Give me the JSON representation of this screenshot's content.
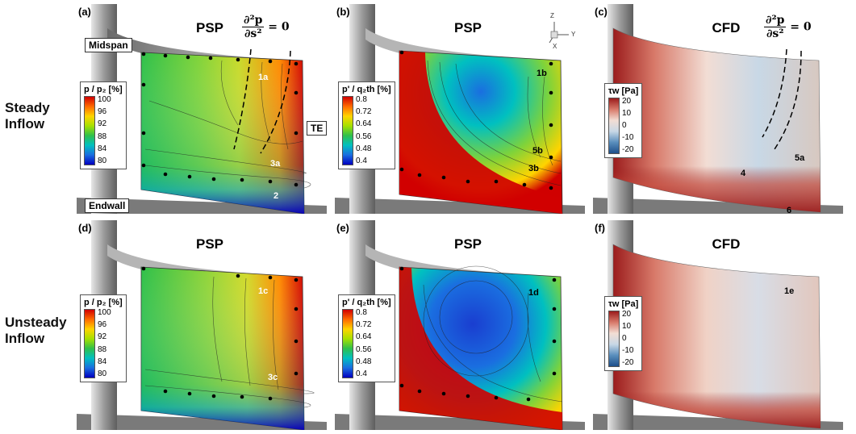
{
  "rows": [
    {
      "label_line1": "Steady",
      "label_line2": "Inflow"
    },
    {
      "label_line1": "Unsteady",
      "label_line2": "Inflow"
    }
  ],
  "panels": {
    "a": {
      "label": "(a)",
      "title": "PSP",
      "tag_midspan": "Midspan",
      "tag_endwall": "Endwall",
      "tag_te": "TE",
      "cbar_title": "p / p₂ [%]",
      "ticks": [
        "100",
        "96",
        "92",
        "88",
        "84",
        "80"
      ],
      "annotations": [
        "1a",
        "3a",
        "2"
      ]
    },
    "b": {
      "label": "(b)",
      "title": "PSP",
      "cbar_title": "p' / q₂th [%]",
      "ticks": [
        "0.8",
        "0.72",
        "0.64",
        "0.56",
        "0.48",
        "0.4"
      ],
      "annotations": [
        "1b",
        "5b",
        "3b"
      ],
      "axes": {
        "z": "Z",
        "y": "Y",
        "x": "X"
      }
    },
    "c": {
      "label": "(c)",
      "title": "CFD",
      "cbar_title": "τw [Pa]",
      "ticks": [
        "20",
        "10",
        "0",
        "-10",
        "-20"
      ],
      "annotations": [
        "5a",
        "4",
        "6"
      ]
    },
    "d": {
      "label": "(d)",
      "title": "PSP",
      "cbar_title": "p / p₂ [%]",
      "ticks": [
        "100",
        "96",
        "92",
        "88",
        "84",
        "80"
      ],
      "annotations": [
        "1c",
        "3c"
      ]
    },
    "e": {
      "label": "(e)",
      "title": "PSP",
      "cbar_title": "p' / q₂th [%]",
      "ticks": [
        "0.8",
        "0.72",
        "0.64",
        "0.56",
        "0.48",
        "0.4"
      ],
      "annotations": [
        "1d"
      ]
    },
    "f": {
      "label": "(f)",
      "title": "CFD",
      "cbar_title": "τw [Pa]",
      "ticks": [
        "20",
        "10",
        "0",
        "-10",
        "-20"
      ],
      "annotations": [
        "1e"
      ]
    }
  },
  "equation": {
    "numerator": "∂²p",
    "denominator": "∂s²",
    "rhs": "= 0"
  },
  "colors": {
    "jet": [
      "#d00000",
      "#ff6a00",
      "#ffd400",
      "#a6e000",
      "#2fc04a",
      "#00c0c0",
      "#1a6ee0",
      "#0000c0"
    ],
    "diverging": [
      "#9b1c1c",
      "#d87a6a",
      "#f2ddd4",
      "#c8d8e6",
      "#5a8fbd",
      "#1e4f8a"
    ]
  }
}
